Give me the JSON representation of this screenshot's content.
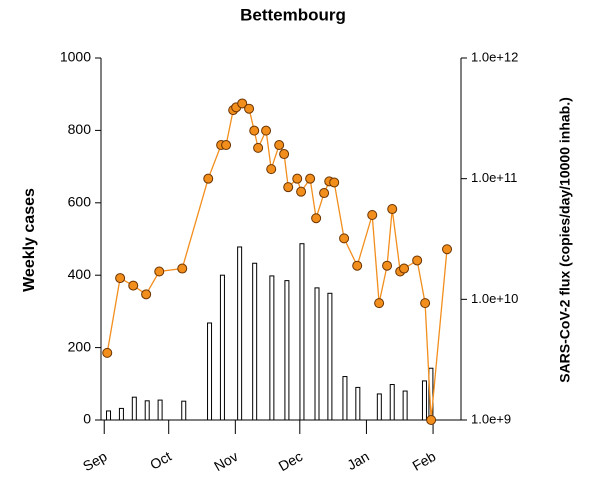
{
  "chart_data": {
    "type": "combo",
    "title": "Bettembourg",
    "ylabel": "Weekly cases",
    "y2label": "SARS-CoV-2 flux (copies/day/10000 inhab.)",
    "xlim": [
      -1.5,
      166
    ],
    "xticks": [
      {
        "value": 0,
        "label": "Sep"
      },
      {
        "value": 30,
        "label": "Oct"
      },
      {
        "value": 61,
        "label": "Nov"
      },
      {
        "value": 91,
        "label": "Dec"
      },
      {
        "value": 122,
        "label": "Jan"
      },
      {
        "value": 153,
        "label": "Feb"
      }
    ],
    "ylim": [
      0,
      1000
    ],
    "yticks": [
      0,
      200,
      400,
      600,
      800,
      1000
    ],
    "y2lim": [
      1000000000,
      1000000000000
    ],
    "y2log": true,
    "y2ticks": [
      {
        "value": 1000000000,
        "label": "1.0e+9"
      },
      {
        "value": 10000000000,
        "label": "1.0e+10"
      },
      {
        "value": 100000000000,
        "label": "1.0e+11"
      },
      {
        "value": 1000000000000,
        "label": "1.0e+12"
      }
    ],
    "series": [
      {
        "type": "bar",
        "color": "#ffffff",
        "x": [
          2,
          8,
          14,
          20,
          26,
          37,
          49,
          55,
          63,
          70,
          78,
          85,
          92,
          99,
          105,
          112,
          118,
          128,
          134,
          140,
          149,
          152
        ],
        "values": [
          25,
          32,
          63,
          53,
          55,
          52,
          268,
          400,
          478,
          433,
          398,
          385,
          487,
          365,
          350,
          120,
          90,
          72,
          98,
          80,
          108,
          143
        ]
      },
      {
        "type": "line",
        "axis": "y2",
        "color": "#f28e1c",
        "x": [
          1.4,
          7.4,
          13.5,
          19.5,
          25.6,
          36.3,
          48.4,
          54.4,
          56.7,
          60,
          61.4,
          64.2,
          67.4,
          69.8,
          71.6,
          75.3,
          77.7,
          81.4,
          83.7,
          85.6,
          89.8,
          91.6,
          95.8,
          98.6,
          102.3,
          104.7,
          107,
          111.6,
          117.7,
          124.7,
          127.9,
          131.6,
          134,
          137.7,
          139.5,
          145.6,
          149.3,
          152.1,
          159.5
        ],
        "values": [
          3600000000,
          15000000000,
          13000000000,
          11000000000,
          17000000000,
          18000000000,
          100000000000,
          190000000000,
          190000000000,
          370000000000,
          390000000000,
          420000000000,
          380000000000,
          250000000000,
          180000000000,
          250000000000,
          120000000000,
          190000000000,
          160000000000,
          85000000000,
          100000000000,
          78000000000,
          100000000000,
          47000000000,
          76000000000,
          95000000000,
          93000000000,
          32000000000,
          19000000000,
          50000000000,
          9300000000,
          19000000000,
          56000000000,
          17000000000,
          18000000000,
          21000000000,
          9300000000,
          1000000000,
          26000000000
        ]
      }
    ]
  }
}
